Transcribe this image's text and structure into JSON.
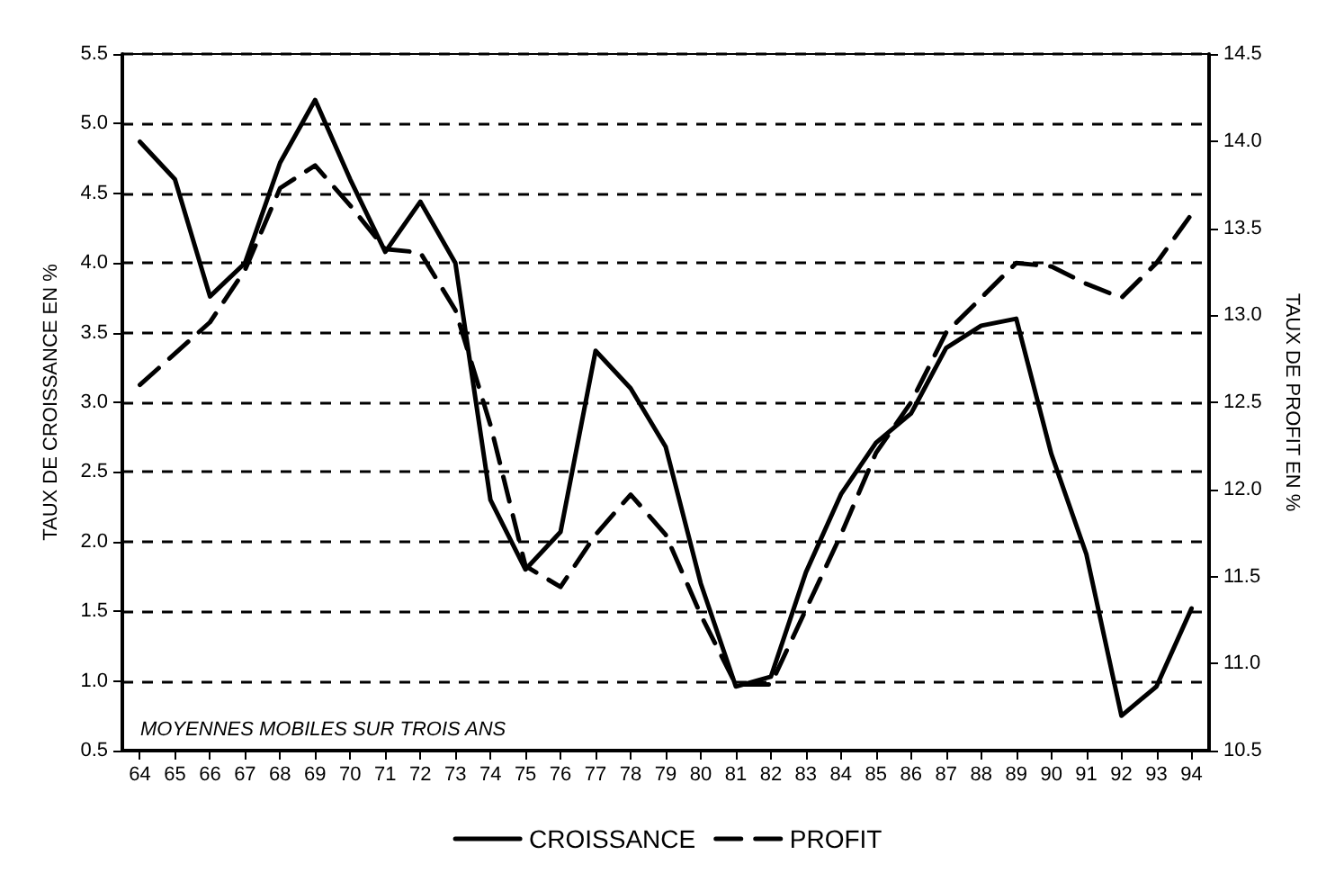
{
  "chart_data": {
    "type": "line",
    "ylabel": "TAUX DE CROISSANCE EN %",
    "y2label": "TAUX DE PROFIT EN %",
    "annotations": [
      "MOYENNES MOBILES SUR TROIS ANS"
    ],
    "categories": [
      "64",
      "65",
      "66",
      "67",
      "68",
      "69",
      "70",
      "71",
      "72",
      "73",
      "74",
      "75",
      "76",
      "77",
      "78",
      "79",
      "80",
      "81",
      "82",
      "83",
      "84",
      "85",
      "86",
      "87",
      "88",
      "89",
      "90",
      "91",
      "92",
      "93",
      "94"
    ],
    "series": [
      {
        "name": "CROISSANCE",
        "color": "#000000",
        "line_style": "solid",
        "values": [
          4.87,
          4.6,
          3.76,
          4.0,
          4.72,
          5.17,
          4.6,
          4.08,
          4.44,
          4.0,
          2.3,
          1.8,
          2.07,
          3.37,
          3.1,
          2.68,
          1.7,
          0.96,
          1.03,
          1.78,
          2.34,
          2.71,
          2.92,
          3.39,
          3.55,
          3.6,
          2.63,
          1.91,
          0.75,
          0.96,
          1.52
        ]
      },
      {
        "name": "PROFIT",
        "color": "#000000",
        "line_style": "dashed",
        "axis": "y2",
        "values": [
          12.6,
          12.78,
          12.96,
          13.26,
          13.73,
          13.86,
          13.63,
          13.38,
          13.36,
          13.03,
          12.37,
          11.56,
          11.44,
          11.74,
          11.97,
          11.74,
          11.28,
          10.88,
          10.88,
          11.31,
          11.74,
          12.21,
          12.5,
          12.9,
          13.1,
          13.3,
          13.28,
          13.18,
          13.1,
          13.3,
          13.58
        ]
      }
    ],
    "ylim": [
      0.5,
      5.5
    ],
    "yticks": [
      0.5,
      {
        "value": 1,
        "label": "1.0"
      },
      1.5,
      {
        "value": 2,
        "label": "2.0"
      },
      2.5,
      {
        "value": 3,
        "label": "3.0"
      },
      3.5,
      {
        "value": 4,
        "label": "4.0"
      },
      4.5,
      {
        "value": 5,
        "label": "5.0"
      },
      5.5
    ],
    "y2lim": [
      10.5,
      14.5
    ],
    "y2ticks": [
      10.5,
      {
        "value": 11,
        "label": "11.0"
      },
      11.5,
      {
        "value": 12,
        "label": "12.0"
      },
      12.5,
      {
        "value": 13,
        "label": "13.0"
      },
      13.5,
      {
        "value": 14,
        "label": "14.0"
      },
      14.5
    ],
    "grid": "y",
    "legend": "bottom",
    "marker": "none"
  }
}
